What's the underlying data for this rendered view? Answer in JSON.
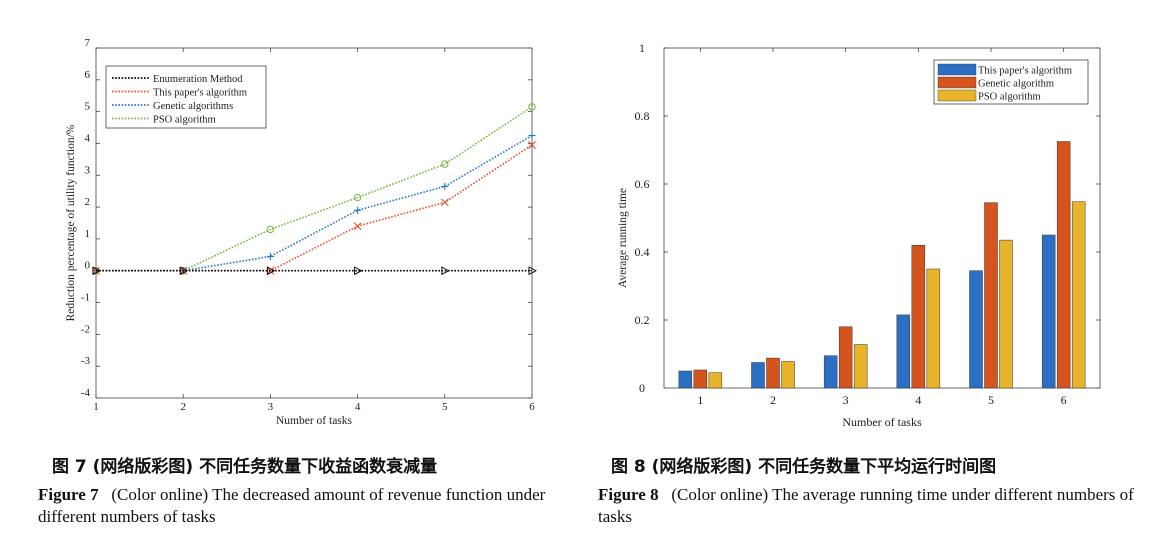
{
  "charts": [
    {
      "type": "line",
      "xlabel": "Number of tasks",
      "ylabel": "Reduction percentage of utility function/%",
      "xlim": [
        1,
        6
      ],
      "ylim": [
        -4,
        7
      ],
      "xticks": [
        "1",
        "2",
        "3",
        "4",
        "5",
        "6"
      ],
      "yticks": [
        "-4",
        "-3",
        "-2",
        "-1",
        "0",
        "1",
        "2",
        "3",
        "4",
        "5",
        "6",
        "7"
      ],
      "legend_position": "top-left",
      "grid": false,
      "x": [
        1,
        2,
        3,
        4,
        5,
        6
      ],
      "series": [
        {
          "name": "Enumeration Method",
          "values": [
            0,
            0,
            0,
            0,
            0,
            0
          ],
          "color": "#000000",
          "marker": "triangle"
        },
        {
          "name": "This paper's algorithm",
          "values": [
            0,
            0,
            0,
            1.4,
            2.15,
            3.95
          ],
          "color": "#e8502a",
          "marker": "x"
        },
        {
          "name": "Genetic algorithms",
          "values": [
            0,
            0,
            0.45,
            1.9,
            2.65,
            4.25
          ],
          "color": "#2878c8",
          "marker": "plus"
        },
        {
          "name": "PSO algorithm",
          "values": [
            0,
            0,
            1.3,
            2.3,
            3.35,
            5.15
          ],
          "color": "#78b43c",
          "marker": "circle"
        }
      ]
    },
    {
      "type": "bar",
      "xlabel": "Number  of  tasks",
      "ylabel": "Average running time",
      "ylim": [
        0,
        1
      ],
      "categories": [
        "1",
        "2",
        "3",
        "4",
        "5",
        "6"
      ],
      "yticks": [
        "0",
        "0.2",
        "0.4",
        "0.6",
        "0.8",
        "1"
      ],
      "legend_position": "top-right",
      "grid": false,
      "series": [
        {
          "name": "This paper's algorithm",
          "values": [
            0.05,
            0.075,
            0.095,
            0.215,
            0.345,
            0.45
          ],
          "color": "#2a6fc4"
        },
        {
          "name": "Genetic algorithm",
          "values": [
            0.053,
            0.088,
            0.18,
            0.42,
            0.545,
            0.725
          ],
          "color": "#d5541e"
        },
        {
          "name": "PSO algorithm",
          "values": [
            0.045,
            0.078,
            0.128,
            0.35,
            0.435,
            0.548
          ],
          "color": "#e8b52a"
        }
      ]
    }
  ],
  "captions": {
    "fig7_zh": "图 7  (网络版彩图) 不同任务数量下收益函数衰减量",
    "fig7_label": "Figure 7",
    "fig7_en": "(Color online) The decreased amount of revenue function under different numbers of tasks",
    "fig8_zh": "图 8  (网络版彩图) 不同任务数量下平均运行时间图",
    "fig8_label": "Figure 8",
    "fig8_en": "(Color online) The average running time under different numbers of tasks"
  }
}
